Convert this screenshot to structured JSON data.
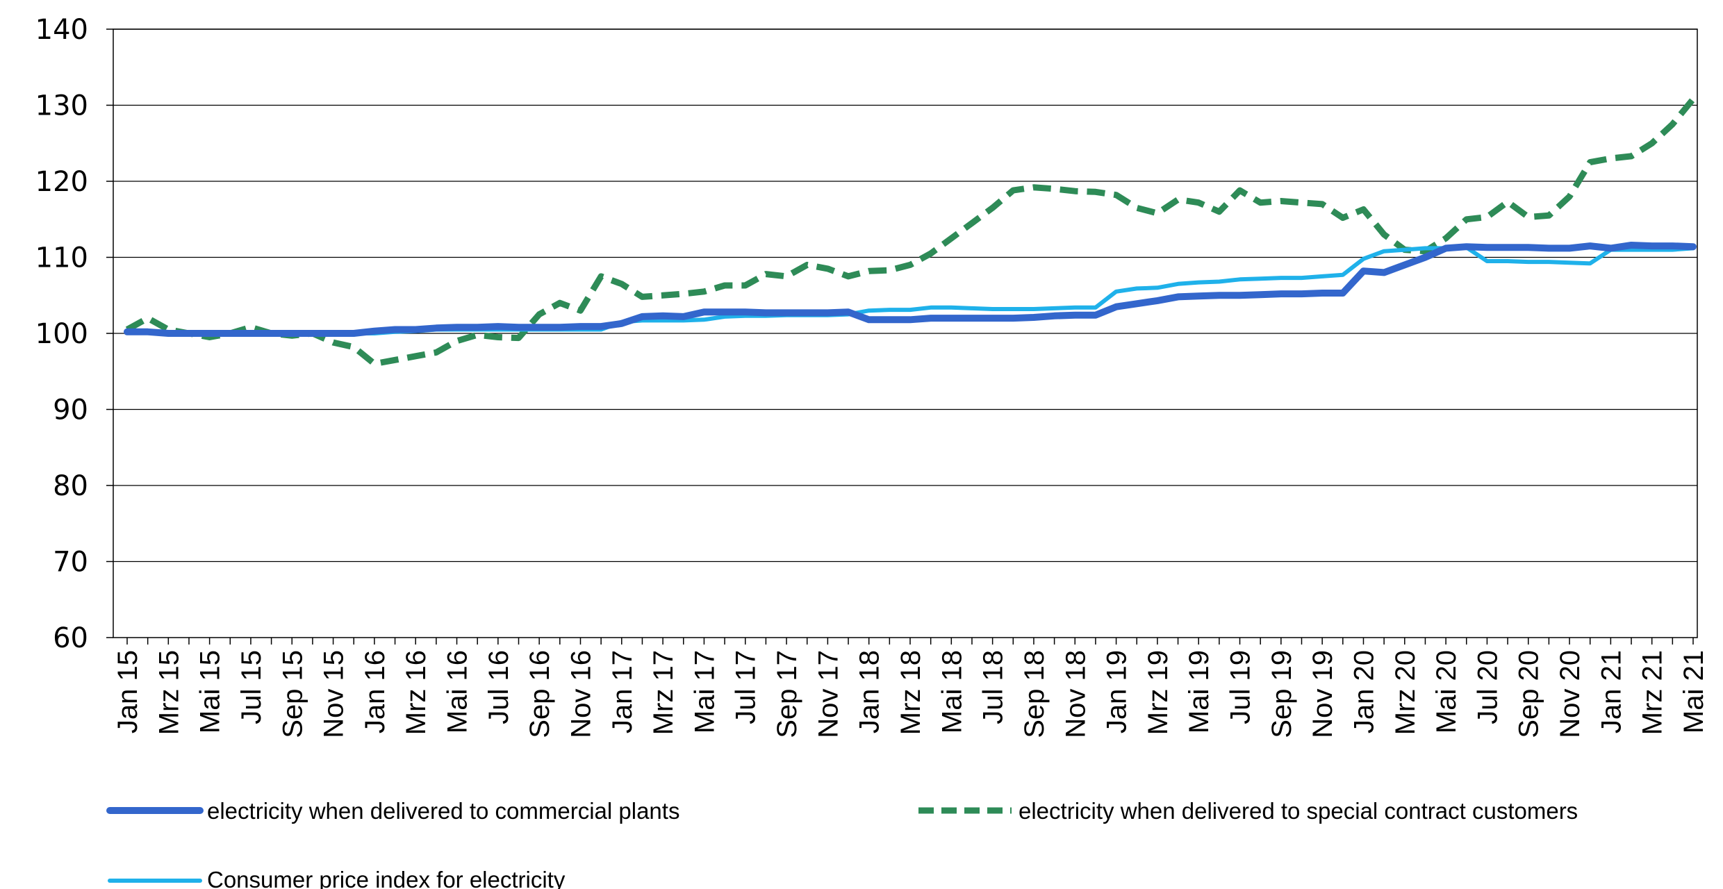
{
  "chart_data": {
    "type": "line",
    "title": "",
    "xlabel": "",
    "ylabel": "",
    "ylim": [
      60,
      140
    ],
    "yticks": [
      60,
      70,
      80,
      90,
      100,
      110,
      120,
      130,
      140
    ],
    "grid": "horizontal",
    "legend_position": "bottom",
    "x_tick_labels": [
      "Jan 15",
      "Mrz 15",
      "Mai 15",
      "Jul 15",
      "Sep 15",
      "Nov 15",
      "Jan 16",
      "Mrz 16",
      "Mai 16",
      "Jul 16",
      "Sep 16",
      "Nov 16",
      "Jan 17",
      "Mrz 17",
      "Mai 17",
      "Jul 17",
      "Sep 17",
      "Nov 17",
      "Jan 18",
      "Mrz 18",
      "Mai 18",
      "Jul 18",
      "Sep 18",
      "Nov 18",
      "Jan 19",
      "Mrz 19",
      "Mai 19",
      "Jul 19",
      "Sep 19",
      "Nov 19",
      "Jan 20",
      "Mrz 20",
      "Mai 20",
      "Jul 20",
      "Sep 20",
      "Nov 20",
      "Jan 21",
      "Mrz 21",
      "Mai 21"
    ],
    "x": [
      "Jan 15",
      "Feb 15",
      "Mrz 15",
      "Apr 15",
      "Mai 15",
      "Jun 15",
      "Jul 15",
      "Aug 15",
      "Sep 15",
      "Okt 15",
      "Nov 15",
      "Dez 15",
      "Jan 16",
      "Feb 16",
      "Mrz 16",
      "Apr 16",
      "Mai 16",
      "Jun 16",
      "Jul 16",
      "Aug 16",
      "Sep 16",
      "Okt 16",
      "Nov 16",
      "Dez 16",
      "Jan 17",
      "Feb 17",
      "Mrz 17",
      "Apr 17",
      "Mai 17",
      "Jun 17",
      "Jul 17",
      "Aug 17",
      "Sep 17",
      "Okt 17",
      "Nov 17",
      "Dez 17",
      "Jan 18",
      "Feb 18",
      "Mrz 18",
      "Apr 18",
      "Mai 18",
      "Jun 18",
      "Jul 18",
      "Aug 18",
      "Sep 18",
      "Okt 18",
      "Nov 18",
      "Dez 18",
      "Jan 19",
      "Feb 19",
      "Mrz 19",
      "Apr 19",
      "Mai 19",
      "Jun 19",
      "Jul 19",
      "Aug 19",
      "Sep 19",
      "Okt 19",
      "Nov 19",
      "Dez 19",
      "Jan 20",
      "Feb 20",
      "Mrz 20",
      "Apr 20",
      "Mai 20",
      "Jun 20",
      "Jul 20",
      "Aug 20",
      "Sep 20",
      "Okt 20",
      "Nov 20",
      "Dez 20",
      "Jan 21",
      "Feb 21",
      "Mrz 21",
      "Apr 21",
      "Mai 21"
    ],
    "series": [
      {
        "name": "electricity when delivered to commercial plants",
        "color": "#3366cc",
        "style": "solid-thick",
        "values": [
          100.2,
          100.2,
          100.0,
          100.0,
          100.0,
          100.0,
          100.0,
          100.0,
          100.0,
          100.0,
          100.0,
          100.0,
          100.3,
          100.5,
          100.5,
          100.7,
          100.8,
          100.8,
          100.9,
          100.8,
          100.8,
          100.8,
          100.9,
          100.9,
          101.3,
          102.2,
          102.3,
          102.2,
          102.8,
          102.8,
          102.8,
          102.7,
          102.7,
          102.7,
          102.7,
          102.8,
          101.8,
          101.8,
          101.8,
          102.0,
          102.0,
          102.0,
          102.0,
          102.0,
          102.1,
          102.3,
          102.4,
          102.4,
          103.5,
          103.9,
          104.3,
          104.8,
          104.9,
          105.0,
          105.0,
          105.1,
          105.2,
          105.2,
          105.3,
          105.3,
          108.2,
          108.0,
          109.0,
          110.0,
          111.2,
          111.4,
          111.3,
          111.3,
          111.3,
          111.2,
          111.2,
          111.5,
          111.2,
          111.6,
          111.5,
          111.5,
          111.4
        ]
      },
      {
        "name": "electricity when delivered to special contract customers",
        "color": "#2e8b57",
        "style": "dashed",
        "values": [
          100.5,
          102.0,
          100.5,
          100.0,
          99.5,
          100.0,
          100.8,
          100.0,
          99.7,
          100.0,
          98.8,
          98.2,
          96.0,
          96.5,
          97.0,
          97.5,
          99.0,
          99.8,
          99.5,
          99.4,
          102.5,
          104.0,
          103.0,
          107.5,
          106.5,
          104.8,
          105.0,
          105.2,
          105.5,
          106.3,
          106.3,
          107.8,
          107.5,
          109.0,
          108.5,
          107.5,
          108.2,
          108.3,
          109.0,
          110.5,
          112.5,
          114.5,
          116.5,
          118.8,
          119.2,
          119.0,
          118.7,
          118.6,
          118.2,
          116.5,
          115.8,
          117.6,
          117.2,
          116.0,
          118.8,
          117.2,
          117.4,
          117.2,
          117.0,
          115.2,
          116.3,
          113.0,
          111.0,
          110.8,
          112.5,
          115.0,
          115.3,
          117.3,
          115.3,
          115.5,
          118.0,
          122.5,
          123.0,
          123.3,
          125.0,
          127.5,
          130.8
        ]
      },
      {
        "name": "Consumer price index for electricity",
        "color": "#1fb1ea",
        "style": "solid",
        "values": [
          100.2,
          100.2,
          100.0,
          100.0,
          100.0,
          100.0,
          100.0,
          100.0,
          100.0,
          99.9,
          99.9,
          100.0,
          100.0,
          100.2,
          100.3,
          100.5,
          100.5,
          100.5,
          100.5,
          100.5,
          100.5,
          100.5,
          100.5,
          100.5,
          101.5,
          101.7,
          101.7,
          101.7,
          101.8,
          102.2,
          102.3,
          102.3,
          102.4,
          102.4,
          102.4,
          102.5,
          103.0,
          103.1,
          103.1,
          103.4,
          103.4,
          103.3,
          103.2,
          103.2,
          103.2,
          103.3,
          103.4,
          103.4,
          105.5,
          105.9,
          106.0,
          106.5,
          106.7,
          106.8,
          107.1,
          107.2,
          107.3,
          107.3,
          107.5,
          107.7,
          109.8,
          110.8,
          111.0,
          111.2,
          111.2,
          111.3,
          109.5,
          109.5,
          109.4,
          109.4,
          109.3,
          109.2,
          111.0,
          111.0,
          111.0,
          111.0,
          111.2
        ]
      }
    ]
  }
}
